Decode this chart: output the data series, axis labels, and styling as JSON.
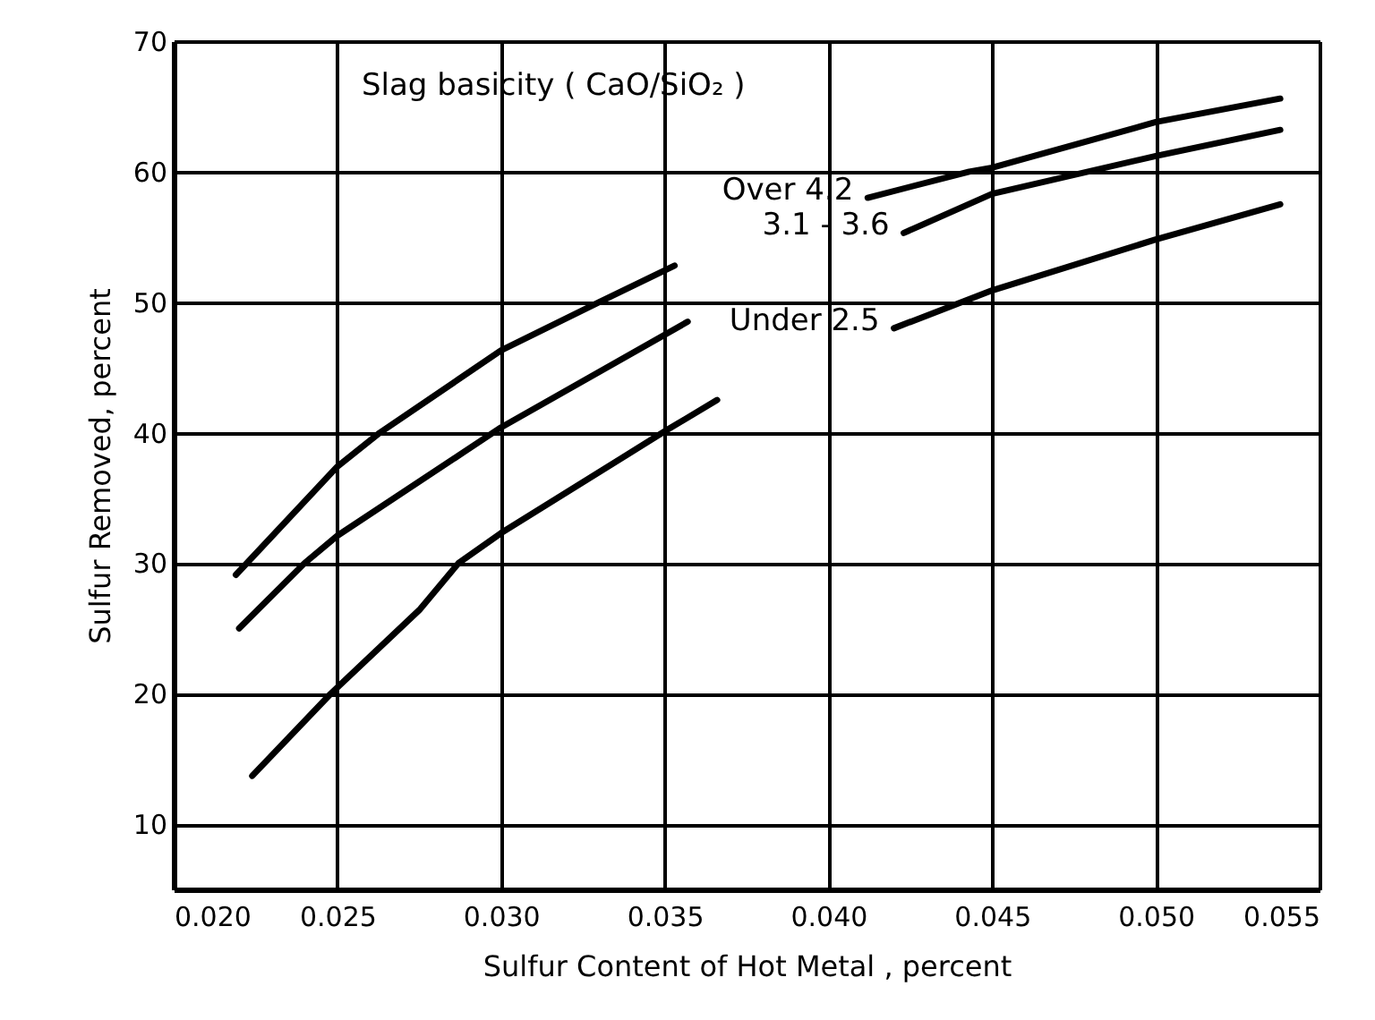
{
  "chart_data": {
    "type": "line",
    "xlabel": "Sulfur Content of Hot Metal , percent",
    "ylabel": "Sulfur Removed, percent",
    "annotations": [
      "Slag basicity ( CaO/SiO₂ )"
    ],
    "series": [
      {
        "name": "Over 4.2",
        "color": "#000000",
        "x": [
          0.0219,
          0.025,
          0.0263,
          0.03,
          0.033,
          0.0353,
          0.038,
          0.0412,
          0.0443,
          0.045,
          0.05,
          0.0538
        ],
        "values": [
          29.1,
          37.4,
          40,
          46.3,
          50,
          52.8,
          null,
          58.0,
          60,
          60.3,
          63.8,
          65.6
        ]
      },
      {
        "name": "3.1 - 3.6",
        "color": "#000000",
        "x": [
          0.022,
          0.024,
          0.025,
          0.03,
          0.0357,
          0.039,
          0.0423,
          0.045,
          0.05,
          0.0538
        ],
        "values": [
          25.0,
          30,
          32.1,
          40.4,
          48.5,
          null,
          55.3,
          58.3,
          61.2,
          63.2
        ]
      },
      {
        "name": "Under 2.5",
        "color": "#000000",
        "x": [
          0.0224,
          0.0248,
          0.0275,
          0.0287,
          0.03,
          0.035,
          0.0366,
          0.039,
          0.042,
          0.045,
          0.05,
          0.0538
        ],
        "values": [
          13.7,
          20,
          26.4,
          30,
          32.3,
          40.1,
          42.5,
          null,
          48.0,
          50.9,
          54.8,
          57.5
        ]
      }
    ],
    "xlim": [
      0.02,
      0.055
    ],
    "xticks": [
      {
        "value": 0.02,
        "label": "0.020"
      },
      {
        "value": 0.025,
        "label": "0.025"
      },
      {
        "value": 0.03,
        "label": "0.030"
      },
      {
        "value": 0.035,
        "label": "0.035"
      },
      {
        "value": 0.04,
        "label": "0.040"
      },
      {
        "value": 0.045,
        "label": "0.045"
      },
      {
        "value": 0.05,
        "label": "0.050"
      },
      {
        "value": 0.055,
        "label": "0.055"
      }
    ],
    "ylim": [
      5,
      70
    ],
    "yticks": [
      10,
      20,
      30,
      40,
      50,
      60,
      70
    ],
    "grid": true,
    "legend": false,
    "marker": "none",
    "line_style": "solid"
  }
}
